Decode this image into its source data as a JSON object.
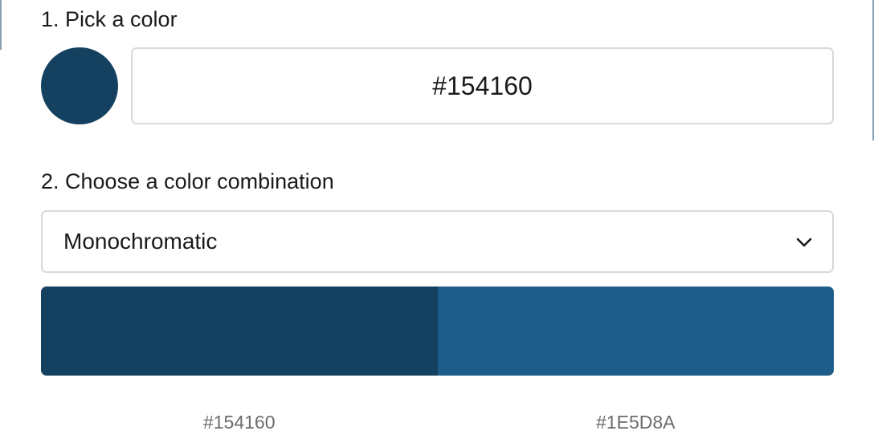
{
  "step1": {
    "label": "1. Pick a color",
    "selected_color": "#154160",
    "input_value": "#154160"
  },
  "step2": {
    "label": "2. Choose a color combination",
    "combination": "Monochromatic"
  },
  "palette": [
    {
      "color": "#154160",
      "label": "#154160"
    },
    {
      "color": "#1E5D8A",
      "label": "#1E5D8A"
    }
  ],
  "icons": {
    "dropdown": "chevron-down-icon"
  }
}
